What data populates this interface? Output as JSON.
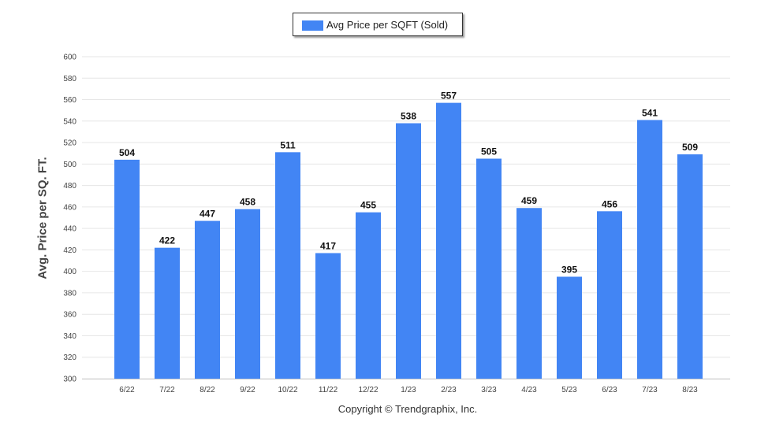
{
  "legend": {
    "label": "Avg Price per SQFT (Sold)",
    "color": "#4285f4"
  },
  "footer": {
    "copyright": "Copyright © Trendgraphix, Inc."
  },
  "chart_data": {
    "type": "bar",
    "ylabel": "Avg. Price per SQ. FT.",
    "xlabel": "",
    "ylim": [
      300,
      600
    ],
    "ytick_step": 20,
    "grid": true,
    "legend_position": "top-center",
    "categories": [
      "6/22",
      "7/22",
      "8/22",
      "9/22",
      "10/22",
      "11/22",
      "12/22",
      "1/23",
      "2/23",
      "3/23",
      "4/23",
      "5/23",
      "6/23",
      "7/23",
      "8/23"
    ],
    "series": [
      {
        "name": "Avg Price per SQFT (Sold)",
        "color": "#4285f4",
        "values": [
          504,
          422,
          447,
          458,
          511,
          417,
          455,
          538,
          557,
          505,
          459,
          395,
          456,
          541,
          509
        ]
      }
    ]
  }
}
